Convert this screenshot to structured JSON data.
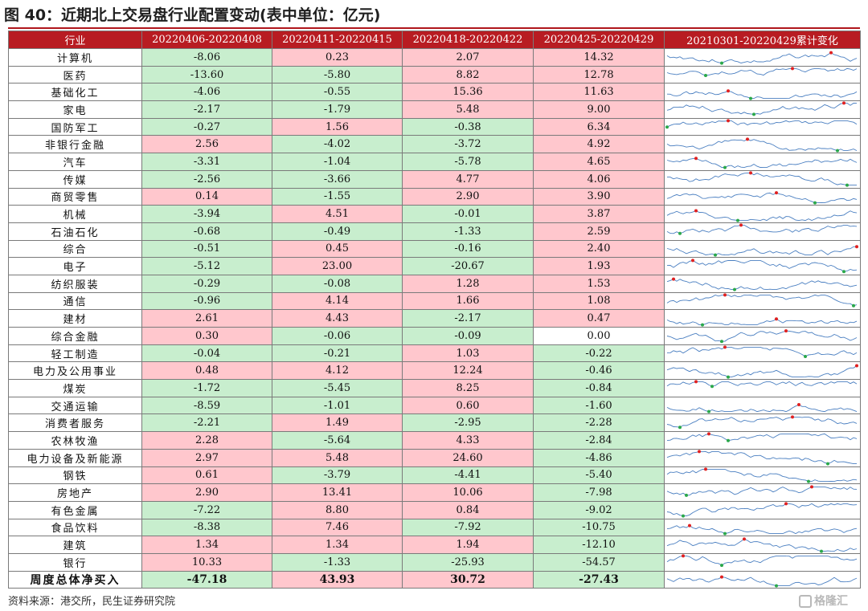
{
  "title": "图 40：近期北上交易盘行业配置变动(表中单位：亿元)",
  "source": "资料来源：港交所，民生证券研究院",
  "watermark": "格隆汇",
  "colors": {
    "header": "#b81c22",
    "positive": "#ffc7cd",
    "negative": "#c8eece",
    "spark_line": "#4a7fc1",
    "spark_max": "#e02020",
    "spark_min": "#2aa84a"
  },
  "headers": [
    "行业",
    "20220406-20220408",
    "20220411-20220415",
    "20220418-20220422",
    "20220425-20220429",
    "20210301-20220429累计变化"
  ],
  "rows": [
    {
      "name": "计算机",
      "values": [
        "-8.06",
        "0.23",
        "2.07",
        "14.32"
      ]
    },
    {
      "name": "医药",
      "values": [
        "-13.60",
        "-5.80",
        "8.82",
        "12.78"
      ]
    },
    {
      "name": "基础化工",
      "values": [
        "-4.06",
        "-0.55",
        "15.36",
        "11.63"
      ]
    },
    {
      "name": "家电",
      "values": [
        "-2.17",
        "-1.79",
        "5.48",
        "9.00"
      ]
    },
    {
      "name": "国防军工",
      "values": [
        "-0.27",
        "1.56",
        "-0.38",
        "6.34"
      ]
    },
    {
      "name": "非银行金融",
      "values": [
        "2.56",
        "-4.02",
        "-3.72",
        "4.92"
      ]
    },
    {
      "name": "汽车",
      "values": [
        "-3.31",
        "-1.04",
        "-5.78",
        "4.65"
      ]
    },
    {
      "name": "传媒",
      "values": [
        "-2.56",
        "-3.66",
        "4.77",
        "4.06"
      ]
    },
    {
      "name": "商贸零售",
      "values": [
        "0.14",
        "-1.55",
        "2.90",
        "3.90"
      ]
    },
    {
      "name": "机械",
      "values": [
        "-3.94",
        "4.51",
        "-0.01",
        "3.87"
      ]
    },
    {
      "name": "石油石化",
      "values": [
        "-0.68",
        "-0.49",
        "-1.33",
        "2.59"
      ]
    },
    {
      "name": "综合",
      "values": [
        "-0.51",
        "0.45",
        "-0.16",
        "2.40"
      ]
    },
    {
      "name": "电子",
      "values": [
        "-5.12",
        "23.00",
        "-20.67",
        "1.93"
      ]
    },
    {
      "name": "纺织服装",
      "values": [
        "-0.29",
        "-0.08",
        "1.28",
        "1.53"
      ]
    },
    {
      "name": "通信",
      "values": [
        "-0.96",
        "4.14",
        "1.66",
        "1.08"
      ]
    },
    {
      "name": "建材",
      "values": [
        "2.61",
        "4.43",
        "-2.17",
        "0.47"
      ]
    },
    {
      "name": "综合金融",
      "values": [
        "0.30",
        "-0.06",
        "-0.09",
        "0.00"
      ]
    },
    {
      "name": "轻工制造",
      "values": [
        "-0.04",
        "-0.21",
        "1.03",
        "-0.22"
      ]
    },
    {
      "name": "电力及公用事业",
      "values": [
        "0.48",
        "4.12",
        "12.24",
        "-0.46"
      ]
    },
    {
      "name": "煤炭",
      "values": [
        "-1.72",
        "-5.45",
        "8.25",
        "-0.84"
      ]
    },
    {
      "name": "交通运输",
      "values": [
        "-8.59",
        "-1.01",
        "0.60",
        "-1.60"
      ]
    },
    {
      "name": "消费者服务",
      "values": [
        "-2.21",
        "1.49",
        "-2.95",
        "-2.28"
      ]
    },
    {
      "name": "农林牧渔",
      "values": [
        "2.28",
        "-5.64",
        "4.33",
        "-2.84"
      ]
    },
    {
      "name": "电力设备及新能源",
      "values": [
        "2.97",
        "5.48",
        "24.60",
        "-4.86"
      ]
    },
    {
      "name": "钢铁",
      "values": [
        "0.61",
        "-3.79",
        "-4.41",
        "-5.40"
      ]
    },
    {
      "name": "房地产",
      "values": [
        "2.90",
        "13.41",
        "10.06",
        "-7.98"
      ]
    },
    {
      "name": "有色金属",
      "values": [
        "-7.22",
        "8.80",
        "0.84",
        "-9.02"
      ]
    },
    {
      "name": "食品饮料",
      "values": [
        "-8.38",
        "7.46",
        "-7.92",
        "-10.75"
      ]
    },
    {
      "name": "建筑",
      "values": [
        "1.34",
        "1.34",
        "1.94",
        "-12.10"
      ]
    },
    {
      "name": "银行",
      "values": [
        "10.33",
        "-1.33",
        "-25.93",
        "-54.57"
      ]
    }
  ],
  "total": {
    "name": "周度总体净买入",
    "values": [
      "-47.18",
      "43.93",
      "30.72",
      "-27.43"
    ]
  }
}
